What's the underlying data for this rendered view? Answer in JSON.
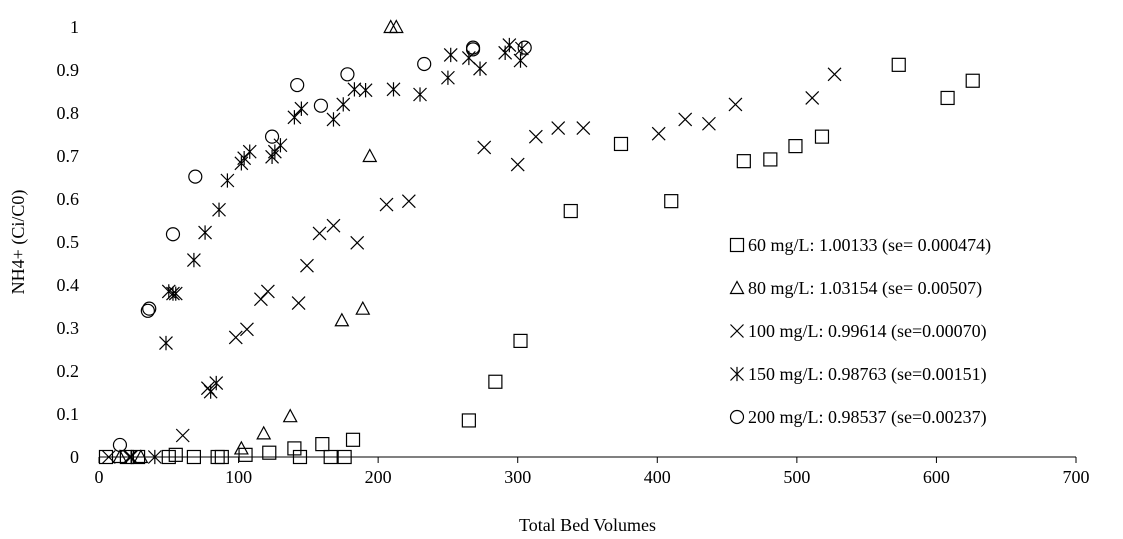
{
  "chart_data": {
    "type": "scatter",
    "title": "",
    "xlabel": "Total Bed Volumes",
    "ylabel": "NH4+ (Ci/C0)",
    "xlim": [
      0,
      700
    ],
    "ylim": [
      0,
      1
    ],
    "xticks": [
      "0",
      "100",
      "200",
      "300",
      "400",
      "500",
      "600",
      "700"
    ],
    "yticks": [
      "0",
      "0.1",
      "0.2",
      "0.3",
      "0.4",
      "0.5",
      "0.6",
      "0.7",
      "0.8",
      "0.9",
      "1"
    ],
    "grid": false,
    "legend_position": "right",
    "series": [
      {
        "name": "60 mg/L: 1.00133 (se= 0.000474)",
        "marker": "square",
        "points": [
          [
            5,
            0
          ],
          [
            20,
            0
          ],
          [
            28,
            0
          ],
          [
            50,
            0
          ],
          [
            55,
            0.005
          ],
          [
            68,
            0
          ],
          [
            85,
            0
          ],
          [
            88,
            0
          ],
          [
            105,
            0.005
          ],
          [
            122,
            0.01
          ],
          [
            140,
            0.02
          ],
          [
            144,
            0
          ],
          [
            160,
            0.03
          ],
          [
            166,
            0
          ],
          [
            176,
            0
          ],
          [
            182,
            0.04
          ],
          [
            265,
            0.085
          ],
          [
            284,
            0.175
          ],
          [
            302,
            0.27
          ],
          [
            338,
            0.572
          ],
          [
            374,
            0.728
          ],
          [
            410,
            0.595
          ],
          [
            462,
            0.688
          ],
          [
            481,
            0.692
          ],
          [
            499,
            0.723
          ],
          [
            518,
            0.745
          ],
          [
            573,
            0.912
          ],
          [
            608,
            0.835
          ],
          [
            626,
            0.875
          ]
        ]
      },
      {
        "name": "80 mg/L: 1.03154 (se= 0.00507)",
        "marker": "triangle",
        "points": [
          [
            15,
            0
          ],
          [
            30,
            0
          ],
          [
            102,
            0.02
          ],
          [
            118,
            0.055
          ],
          [
            137,
            0.095
          ],
          [
            174,
            0.318
          ],
          [
            189,
            0.345
          ],
          [
            194,
            0.7
          ],
          [
            209,
            1.0
          ],
          [
            213,
            1.0
          ]
        ]
      },
      {
        "name": "100 mg/L: 0.99614 (se=0.00070)",
        "marker": "x",
        "points": [
          [
            7,
            0
          ],
          [
            22,
            0
          ],
          [
            60,
            0.05
          ],
          [
            78,
            0.16
          ],
          [
            98,
            0.278
          ],
          [
            106,
            0.297
          ],
          [
            116,
            0.367
          ],
          [
            121,
            0.385
          ],
          [
            143,
            0.358
          ],
          [
            149,
            0.445
          ],
          [
            158,
            0.52
          ],
          [
            168,
            0.538
          ],
          [
            185,
            0.498
          ],
          [
            206,
            0.587
          ],
          [
            222,
            0.595
          ],
          [
            276,
            0.72
          ],
          [
            300,
            0.68
          ],
          [
            313,
            0.745
          ],
          [
            329,
            0.765
          ],
          [
            347,
            0.765
          ],
          [
            401,
            0.752
          ],
          [
            420,
            0.785
          ],
          [
            437,
            0.775
          ],
          [
            456,
            0.82
          ],
          [
            511,
            0.835
          ],
          [
            527,
            0.89
          ]
        ]
      },
      {
        "name": "150 mg/L: 0.98763 (se=0.00151)",
        "marker": "asterisk",
        "points": [
          [
            23,
            0
          ],
          [
            40,
            0
          ],
          [
            48,
            0.265
          ],
          [
            50,
            0.385
          ],
          [
            53,
            0.38
          ],
          [
            55,
            0.38
          ],
          [
            68,
            0.458
          ],
          [
            76,
            0.522
          ],
          [
            80,
            0.152
          ],
          [
            84,
            0.172
          ],
          [
            86,
            0.575
          ],
          [
            92,
            0.643
          ],
          [
            102,
            0.683
          ],
          [
            104,
            0.695
          ],
          [
            108,
            0.71
          ],
          [
            124,
            0.698
          ],
          [
            126,
            0.71
          ],
          [
            130,
            0.725
          ],
          [
            140,
            0.79
          ],
          [
            145,
            0.81
          ],
          [
            168,
            0.785
          ],
          [
            175,
            0.82
          ],
          [
            183,
            0.855
          ],
          [
            191,
            0.853
          ],
          [
            211,
            0.855
          ],
          [
            230,
            0.843
          ],
          [
            250,
            0.882
          ],
          [
            252,
            0.935
          ],
          [
            265,
            0.928
          ],
          [
            273,
            0.903
          ],
          [
            291,
            0.94
          ],
          [
            294,
            0.958
          ],
          [
            302,
            0.922
          ],
          [
            303,
            0.95
          ]
        ]
      },
      {
        "name": "200 mg/L: 0.98537 (se=0.00237)",
        "marker": "circle",
        "points": [
          [
            15,
            0.028
          ],
          [
            35,
            0.34
          ],
          [
            36,
            0.345
          ],
          [
            53,
            0.518
          ],
          [
            69,
            0.652
          ],
          [
            124,
            0.745
          ],
          [
            142,
            0.865
          ],
          [
            159,
            0.817
          ],
          [
            178,
            0.89
          ],
          [
            233,
            0.914
          ],
          [
            268,
            0.948
          ],
          [
            268,
            0.952
          ],
          [
            305,
            0.952
          ]
        ]
      }
    ]
  }
}
